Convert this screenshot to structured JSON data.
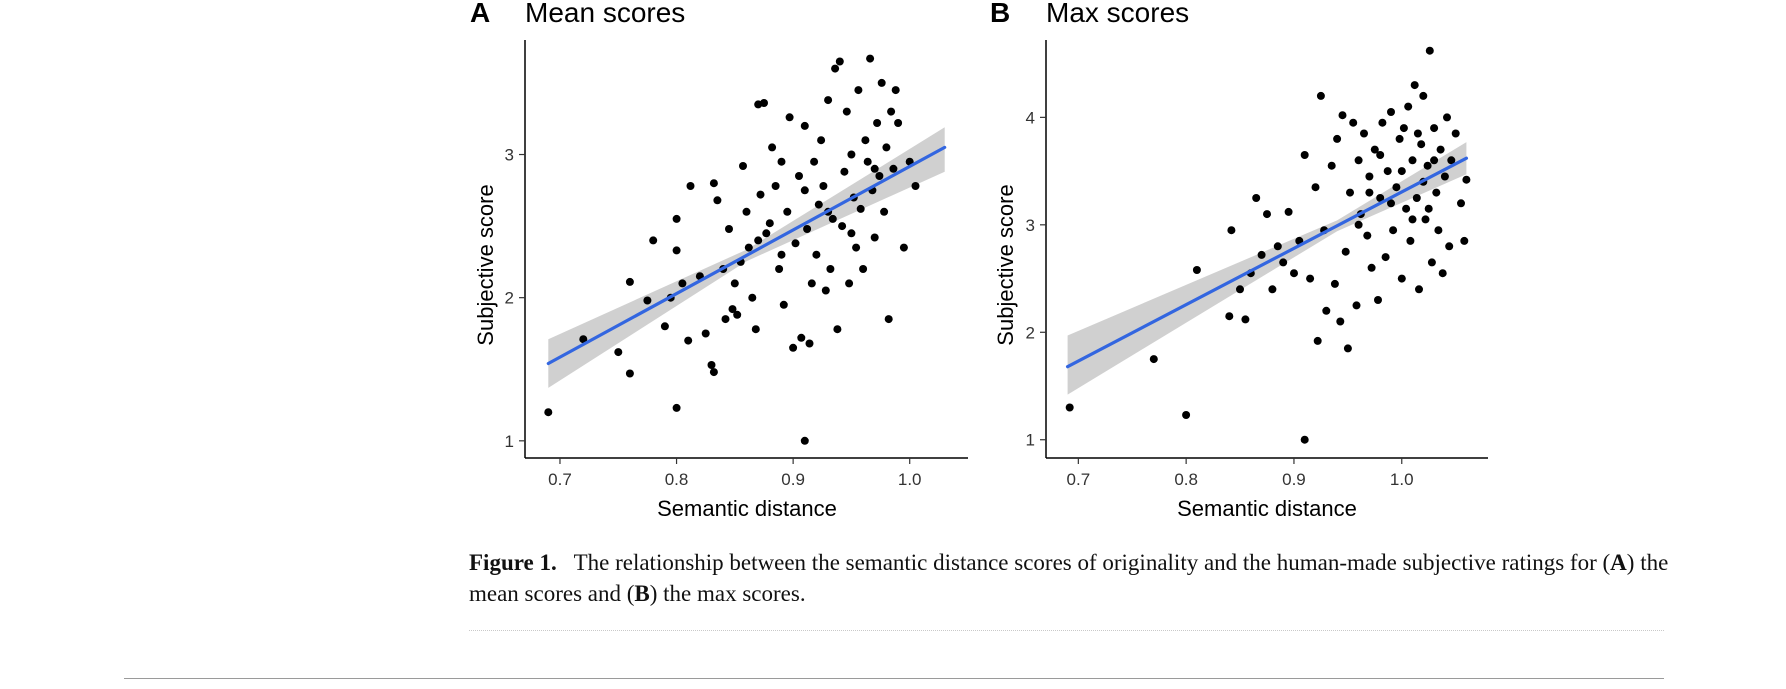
{
  "chart_data": [
    {
      "type": "scatter",
      "panel": "A",
      "title": "Mean scores",
      "xlabel": "Semantic distance",
      "ylabel": "Subjective score",
      "xlim": [
        0.67,
        1.05
      ],
      "ylim": [
        0.88,
        3.8
      ],
      "xticks": [
        0.7,
        0.8,
        0.9,
        1.0
      ],
      "xtick_labels": [
        "0.7",
        "0.8",
        "0.9",
        "1.0"
      ],
      "yticks": [
        1,
        2,
        3
      ],
      "ytick_labels": [
        "1",
        "2",
        "3"
      ],
      "grid": false,
      "colors": {
        "points": "#000000",
        "fit_line": "#3366e0",
        "ribbon": "#c8c8c8"
      },
      "fit": {
        "x0": 0.69,
        "y0": 1.54,
        "x1": 1.03,
        "y1": 3.05,
        "band_lo0": 1.37,
        "band_hi0": 1.71,
        "band_mid_x": 0.86,
        "band_mid_half": 0.04,
        "band_lo1": 2.88,
        "band_hi1": 3.19
      },
      "points": [
        [
          0.69,
          1.2
        ],
        [
          0.72,
          1.71
        ],
        [
          0.75,
          1.62
        ],
        [
          0.76,
          1.47
        ],
        [
          0.76,
          2.11
        ],
        [
          0.775,
          1.98
        ],
        [
          0.78,
          2.4
        ],
        [
          0.79,
          1.8
        ],
        [
          0.795,
          2.0
        ],
        [
          0.8,
          1.23
        ],
        [
          0.8,
          2.33
        ],
        [
          0.8,
          2.55
        ],
        [
          0.805,
          2.1
        ],
        [
          0.81,
          1.7
        ],
        [
          0.812,
          2.78
        ],
        [
          0.82,
          2.15
        ],
        [
          0.825,
          1.75
        ],
        [
          0.83,
          1.53
        ],
        [
          0.832,
          1.48
        ],
        [
          0.832,
          2.8
        ],
        [
          0.835,
          2.68
        ],
        [
          0.84,
          2.2
        ],
        [
          0.842,
          1.85
        ],
        [
          0.845,
          2.48
        ],
        [
          0.848,
          1.92
        ],
        [
          0.85,
          2.1
        ],
        [
          0.852,
          1.88
        ],
        [
          0.855,
          2.25
        ],
        [
          0.857,
          2.92
        ],
        [
          0.86,
          2.6
        ],
        [
          0.862,
          2.35
        ],
        [
          0.865,
          2.0
        ],
        [
          0.868,
          1.78
        ],
        [
          0.87,
          3.35
        ],
        [
          0.872,
          2.72
        ],
        [
          0.875,
          3.36
        ],
        [
          0.877,
          2.45
        ],
        [
          0.88,
          2.52
        ],
        [
          0.882,
          3.05
        ],
        [
          0.885,
          2.78
        ],
        [
          0.888,
          2.2
        ],
        [
          0.89,
          2.95
        ],
        [
          0.892,
          1.95
        ],
        [
          0.895,
          2.6
        ],
        [
          0.897,
          3.26
        ],
        [
          0.9,
          1.65
        ],
        [
          0.902,
          2.38
        ],
        [
          0.905,
          2.85
        ],
        [
          0.907,
          1.72
        ],
        [
          0.91,
          1.0
        ],
        [
          0.91,
          3.2
        ],
        [
          0.912,
          2.48
        ],
        [
          0.914,
          1.68
        ],
        [
          0.916,
          2.1
        ],
        [
          0.918,
          2.95
        ],
        [
          0.92,
          2.3
        ],
        [
          0.922,
          2.65
        ],
        [
          0.924,
          3.1
        ],
        [
          0.926,
          2.78
        ],
        [
          0.928,
          2.05
        ],
        [
          0.93,
          3.38
        ],
        [
          0.932,
          2.2
        ],
        [
          0.934,
          2.55
        ],
        [
          0.936,
          3.6
        ],
        [
          0.938,
          1.78
        ],
        [
          0.94,
          3.65
        ],
        [
          0.942,
          2.5
        ],
        [
          0.944,
          2.88
        ],
        [
          0.946,
          3.3
        ],
        [
          0.948,
          2.1
        ],
        [
          0.95,
          3.0
        ],
        [
          0.952,
          2.7
        ],
        [
          0.954,
          2.35
        ],
        [
          0.956,
          3.45
        ],
        [
          0.958,
          2.62
        ],
        [
          0.96,
          2.2
        ],
        [
          0.962,
          3.1
        ],
        [
          0.964,
          2.95
        ],
        [
          0.966,
          3.67
        ],
        [
          0.968,
          2.75
        ],
        [
          0.97,
          2.42
        ],
        [
          0.972,
          3.22
        ],
        [
          0.974,
          2.85
        ],
        [
          0.976,
          3.5
        ],
        [
          0.978,
          2.6
        ],
        [
          0.98,
          3.05
        ],
        [
          0.982,
          1.85
        ],
        [
          0.984,
          3.3
        ],
        [
          0.986,
          2.9
        ],
        [
          0.988,
          3.45
        ],
        [
          0.99,
          3.22
        ],
        [
          0.995,
          2.35
        ],
        [
          1.0,
          2.95
        ],
        [
          1.005,
          2.78
        ],
        [
          0.87,
          2.4
        ],
        [
          0.89,
          2.3
        ],
        [
          0.93,
          2.6
        ],
        [
          0.95,
          2.45
        ],
        [
          0.97,
          2.9
        ],
        [
          0.91,
          2.75
        ]
      ]
    },
    {
      "type": "scatter",
      "panel": "B",
      "title": "Max scores",
      "xlabel": "Semantic distance",
      "ylabel": "Subjective score",
      "xlim": [
        0.67,
        1.08
      ],
      "ylim": [
        0.83,
        4.72
      ],
      "xticks": [
        0.7,
        0.8,
        0.9,
        1.0
      ],
      "xtick_labels": [
        "0.7",
        "0.8",
        "0.9",
        "1.0"
      ],
      "yticks": [
        1,
        2,
        3,
        4
      ],
      "ytick_labels": [
        "1",
        "2",
        "3",
        "4"
      ],
      "grid": false,
      "colors": {
        "points": "#000000",
        "fit_line": "#3366e0",
        "ribbon": "#c8c8c8"
      },
      "fit": {
        "x0": 0.69,
        "y0": 1.68,
        "x1": 1.06,
        "y1": 3.62,
        "band_lo0": 1.42,
        "band_hi0": 1.97,
        "band_mid_x": 0.94,
        "band_mid_half": 0.05,
        "band_lo1": 3.47,
        "band_hi1": 3.77
      },
      "points": [
        [
          0.692,
          1.3
        ],
        [
          0.77,
          1.75
        ],
        [
          0.8,
          1.23
        ],
        [
          0.81,
          2.58
        ],
        [
          0.84,
          2.15
        ],
        [
          0.842,
          2.95
        ],
        [
          0.85,
          2.4
        ],
        [
          0.855,
          2.12
        ],
        [
          0.86,
          2.55
        ],
        [
          0.865,
          3.25
        ],
        [
          0.87,
          2.72
        ],
        [
          0.875,
          3.1
        ],
        [
          0.88,
          2.4
        ],
        [
          0.885,
          2.8
        ],
        [
          0.89,
          2.65
        ],
        [
          0.895,
          3.12
        ],
        [
          0.9,
          2.55
        ],
        [
          0.905,
          2.85
        ],
        [
          0.91,
          1.0
        ],
        [
          0.91,
          3.65
        ],
        [
          0.915,
          2.5
        ],
        [
          0.92,
          3.35
        ],
        [
          0.922,
          1.92
        ],
        [
          0.925,
          4.2
        ],
        [
          0.928,
          2.95
        ],
        [
          0.93,
          2.2
        ],
        [
          0.935,
          3.55
        ],
        [
          0.938,
          2.45
        ],
        [
          0.94,
          3.8
        ],
        [
          0.943,
          2.1
        ],
        [
          0.945,
          4.02
        ],
        [
          0.948,
          2.75
        ],
        [
          0.95,
          1.85
        ],
        [
          0.952,
          3.3
        ],
        [
          0.955,
          3.95
        ],
        [
          0.958,
          2.25
        ],
        [
          0.96,
          3.6
        ],
        [
          0.962,
          3.1
        ],
        [
          0.965,
          3.85
        ],
        [
          0.968,
          2.9
        ],
        [
          0.97,
          3.45
        ],
        [
          0.972,
          2.6
        ],
        [
          0.975,
          3.7
        ],
        [
          0.978,
          2.3
        ],
        [
          0.98,
          3.25
        ],
        [
          0.982,
          3.95
        ],
        [
          0.985,
          2.7
        ],
        [
          0.987,
          3.5
        ],
        [
          0.99,
          4.05
        ],
        [
          0.992,
          2.95
        ],
        [
          0.995,
          3.35
        ],
        [
          0.998,
          3.8
        ],
        [
          1.0,
          2.5
        ],
        [
          1.002,
          3.9
        ],
        [
          1.004,
          3.15
        ],
        [
          1.006,
          4.1
        ],
        [
          1.008,
          2.85
        ],
        [
          1.01,
          3.6
        ],
        [
          1.012,
          4.3
        ],
        [
          1.014,
          3.25
        ],
        [
          1.016,
          2.4
        ],
        [
          1.018,
          3.75
        ],
        [
          1.02,
          4.2
        ],
        [
          1.022,
          3.05
        ],
        [
          1.024,
          3.55
        ],
        [
          1.026,
          4.62
        ],
        [
          1.028,
          2.65
        ],
        [
          1.03,
          3.9
        ],
        [
          1.032,
          3.3
        ],
        [
          1.034,
          2.95
        ],
        [
          1.036,
          3.7
        ],
        [
          1.038,
          2.55
        ],
        [
          1.04,
          3.45
        ],
        [
          1.042,
          4.0
        ],
        [
          1.044,
          2.8
        ],
        [
          1.046,
          3.6
        ],
        [
          1.05,
          3.85
        ],
        [
          1.055,
          3.2
        ],
        [
          1.058,
          2.85
        ],
        [
          1.06,
          3.42
        ],
        [
          0.96,
          3.0
        ],
        [
          0.98,
          3.65
        ],
        [
          1.0,
          3.5
        ],
        [
          1.02,
          3.4
        ],
        [
          1.01,
          3.05
        ],
        [
          0.99,
          3.2
        ],
        [
          1.03,
          3.6
        ],
        [
          0.97,
          3.3
        ],
        [
          1.015,
          3.85
        ],
        [
          1.025,
          3.15
        ]
      ]
    }
  ],
  "caption": {
    "label": "Figure 1.",
    "text_part1": "The relationship between the semantic distance scores of originality and the human-made subjective ratings for (",
    "bold_a": "A",
    "text_part2": ") the mean scores and (",
    "bold_b": "B",
    "text_part3": ") the max scores."
  }
}
